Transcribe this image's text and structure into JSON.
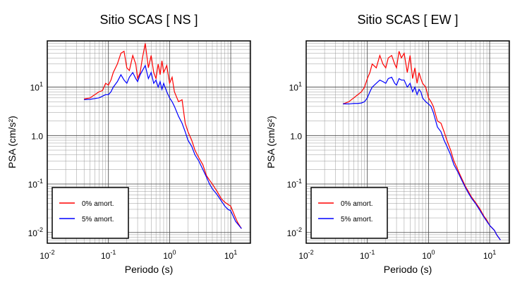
{
  "chart_data": [
    {
      "type": "line",
      "title": "Sitio SCAS [ NS ]",
      "x_label": "Periodo (s)",
      "y_label": "PSA (cm/s²)",
      "log_x": true,
      "log_y": true,
      "grid": true,
      "legend": "lower left",
      "xlim": [
        0.01,
        21
      ],
      "ylim": [
        0.006,
        90
      ],
      "xticks": [
        {
          "value": 0.01,
          "label": "10",
          "exponent": "-2"
        },
        {
          "value": 0.1,
          "label": "10",
          "exponent": "-1"
        },
        {
          "value": 1,
          "label": "10",
          "exponent": "0"
        },
        {
          "value": 10,
          "label": "10",
          "exponent": "1"
        }
      ],
      "yticks": [
        {
          "value": 0.01,
          "label": "10",
          "exponent": "-2"
        },
        {
          "value": 0.1,
          "label": "10",
          "exponent": "-1"
        },
        {
          "value": 1,
          "label": "1.0"
        },
        {
          "value": 10,
          "label": "10",
          "exponent": "1"
        }
      ],
      "x": [
        0.04,
        0.05,
        0.06,
        0.07,
        0.08,
        0.09,
        0.1,
        0.11,
        0.12,
        0.14,
        0.16,
        0.18,
        0.2,
        0.22,
        0.25,
        0.28,
        0.3,
        0.33,
        0.36,
        0.4,
        0.45,
        0.5,
        0.55,
        0.6,
        0.65,
        0.7,
        0.75,
        0.8,
        0.9,
        1.0,
        1.1,
        1.2,
        1.4,
        1.6,
        1.8,
        2.0,
        2.3,
        2.6,
        3,
        3.5,
        4,
        4.5,
        5,
        6,
        7,
        8,
        9,
        10,
        12,
        13,
        15
      ],
      "series": [
        {
          "name": "0% amort.",
          "color": "#ff0000",
          "values": [
            5.7,
            6,
            7,
            8,
            8.5,
            12,
            11,
            14,
            20,
            30,
            50,
            55,
            25,
            22,
            45,
            30,
            15,
            20,
            40,
            80,
            25,
            45,
            20,
            15,
            30,
            18,
            35,
            20,
            28,
            12,
            16,
            8,
            5,
            5.5,
            1.8,
            1.2,
            0.8,
            0.5,
            0.35,
            0.25,
            0.15,
            0.12,
            0.1,
            0.07,
            0.05,
            0.042,
            0.038,
            0.035,
            0.02,
            0.016,
            0.012
          ]
        },
        {
          "name": "5% amort.",
          "color": "#0000ff",
          "values": [
            5.5,
            5.6,
            5.8,
            6,
            6.5,
            7,
            7,
            8,
            10,
            13,
            18,
            14,
            12,
            16,
            20,
            15,
            13,
            18,
            22,
            28,
            15,
            20,
            12,
            14,
            10,
            13,
            9,
            12,
            8,
            6,
            5,
            4,
            2.5,
            1.8,
            1.2,
            0.8,
            0.6,
            0.4,
            0.3,
            0.2,
            0.14,
            0.1,
            0.08,
            0.06,
            0.045,
            0.035,
            0.03,
            0.028,
            0.017,
            0.015,
            0.012
          ]
        }
      ]
    },
    {
      "type": "line",
      "title": "Sitio SCAS [ EW ]",
      "x_label": "Periodo (s)",
      "y_label": "PSA (cm/s²)",
      "log_x": true,
      "log_y": true,
      "grid": true,
      "legend": "lower left",
      "xlim": [
        0.01,
        21
      ],
      "ylim": [
        0.006,
        90
      ],
      "xticks": [
        {
          "value": 0.01,
          "label": "10",
          "exponent": "-2"
        },
        {
          "value": 0.1,
          "label": "10",
          "exponent": "-1"
        },
        {
          "value": 1,
          "label": "10",
          "exponent": "0"
        },
        {
          "value": 10,
          "label": "10",
          "exponent": "1"
        }
      ],
      "yticks": [
        {
          "value": 0.01,
          "label": "10",
          "exponent": "-2"
        },
        {
          "value": 0.1,
          "label": "10",
          "exponent": "-1"
        },
        {
          "value": 1,
          "label": "1.0"
        },
        {
          "value": 10,
          "label": "10",
          "exponent": "1"
        }
      ],
      "x": [
        0.04,
        0.05,
        0.06,
        0.07,
        0.08,
        0.09,
        0.1,
        0.11,
        0.12,
        0.14,
        0.16,
        0.18,
        0.2,
        0.22,
        0.25,
        0.28,
        0.3,
        0.33,
        0.36,
        0.4,
        0.45,
        0.5,
        0.55,
        0.6,
        0.65,
        0.7,
        0.75,
        0.8,
        0.9,
        1.0,
        1.1,
        1.2,
        1.4,
        1.6,
        1.8,
        2.0,
        2.3,
        2.6,
        3,
        3.5,
        4,
        4.5,
        5,
        6,
        7,
        8,
        9,
        10,
        12,
        13,
        15
      ],
      "series": [
        {
          "name": "0% amort.",
          "color": "#ff0000",
          "values": [
            4.5,
            5,
            6,
            7,
            8,
            10,
            15,
            20,
            30,
            25,
            45,
            30,
            25,
            40,
            45,
            30,
            25,
            55,
            40,
            50,
            20,
            45,
            15,
            25,
            12,
            20,
            15,
            12,
            10,
            6,
            5,
            4,
            2,
            1.8,
            1.2,
            0.8,
            0.5,
            0.3,
            0.2,
            0.13,
            0.09,
            0.07,
            0.055,
            0.04,
            0.03,
            0.022,
            0.018,
            0.014,
            0.011,
            0.009,
            0.007
          ]
        },
        {
          "name": "5% amort.",
          "color": "#0000ff",
          "values": [
            4.5,
            4.5,
            4.6,
            4.6,
            4.7,
            5,
            6,
            8,
            10,
            12,
            14,
            13,
            12,
            15,
            16,
            12,
            11,
            15,
            14,
            14,
            10,
            12,
            8,
            10,
            7,
            9,
            8,
            6,
            5,
            4.5,
            4,
            3,
            1.5,
            1.2,
            0.8,
            0.6,
            0.4,
            0.25,
            0.18,
            0.12,
            0.085,
            0.065,
            0.052,
            0.038,
            0.028,
            0.021,
            0.017,
            0.014,
            0.011,
            0.009,
            0.007
          ]
        }
      ]
    }
  ]
}
